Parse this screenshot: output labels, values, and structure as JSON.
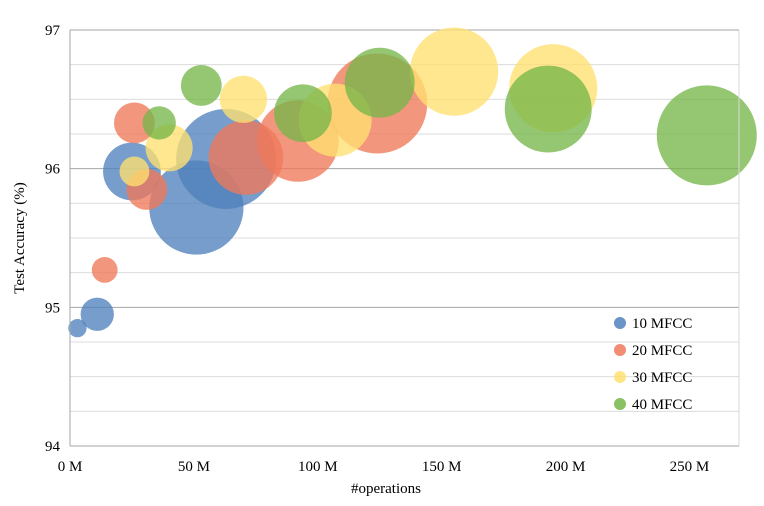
{
  "chart_data": {
    "type": "bubble",
    "title": "",
    "xlabel": "#operations",
    "ylabel": "Test Accuracy (%)",
    "xlim": [
      0,
      270
    ],
    "ylim": [
      94,
      97
    ],
    "x_unit": "M",
    "xticks": [
      0,
      50,
      100,
      150,
      200,
      250
    ],
    "xtick_labels": [
      "0  M",
      "50  M",
      "100  M",
      "150  M",
      "200  M",
      "250  M"
    ],
    "yticks": [
      94,
      95,
      96,
      97
    ],
    "ytick_labels": [
      "94",
      "95",
      "96",
      "97"
    ],
    "grid": "horizontal",
    "legend_position": "bottom-right",
    "series": [
      {
        "name": "10 MFCC",
        "color": "#4f81bd",
        "points": [
          {
            "x": 3,
            "y": 94.85,
            "size": 0.15
          },
          {
            "x": 11,
            "y": 94.95,
            "size": 0.5
          },
          {
            "x": 25,
            "y": 95.98,
            "size": 1.5
          },
          {
            "x": 51,
            "y": 95.72,
            "size": 4.0
          },
          {
            "x": 63,
            "y": 96.07,
            "size": 4.5
          }
        ]
      },
      {
        "name": "20 MFCC",
        "color": "#f0785a",
        "points": [
          {
            "x": 14,
            "y": 95.27,
            "size": 0.3
          },
          {
            "x": 26,
            "y": 96.33,
            "size": 0.75
          },
          {
            "x": 31,
            "y": 95.85,
            "size": 0.75
          },
          {
            "x": 71,
            "y": 96.08,
            "size": 2.5
          },
          {
            "x": 92,
            "y": 96.2,
            "size": 3.0
          },
          {
            "x": 124,
            "y": 96.47,
            "size": 4.5
          }
        ]
      },
      {
        "name": "30 MFCC",
        "color": "#ffe070",
        "points": [
          {
            "x": 26,
            "y": 95.98,
            "size": 0.4
          },
          {
            "x": 40,
            "y": 96.15,
            "size": 1.0
          },
          {
            "x": 70,
            "y": 96.5,
            "size": 1.0
          },
          {
            "x": 107,
            "y": 96.35,
            "size": 2.4
          },
          {
            "x": 155,
            "y": 96.7,
            "size": 3.5
          },
          {
            "x": 195,
            "y": 96.58,
            "size": 3.5
          }
        ]
      },
      {
        "name": "40 MFCC",
        "color": "#77b64a",
        "points": [
          {
            "x": 36,
            "y": 96.33,
            "size": 0.5
          },
          {
            "x": 53,
            "y": 96.6,
            "size": 0.75
          },
          {
            "x": 94,
            "y": 96.4,
            "size": 1.5
          },
          {
            "x": 125,
            "y": 96.62,
            "size": 2.2
          },
          {
            "x": 193,
            "y": 96.43,
            "size": 3.4
          },
          {
            "x": 257,
            "y": 96.24,
            "size": 4.5
          }
        ]
      }
    ]
  }
}
